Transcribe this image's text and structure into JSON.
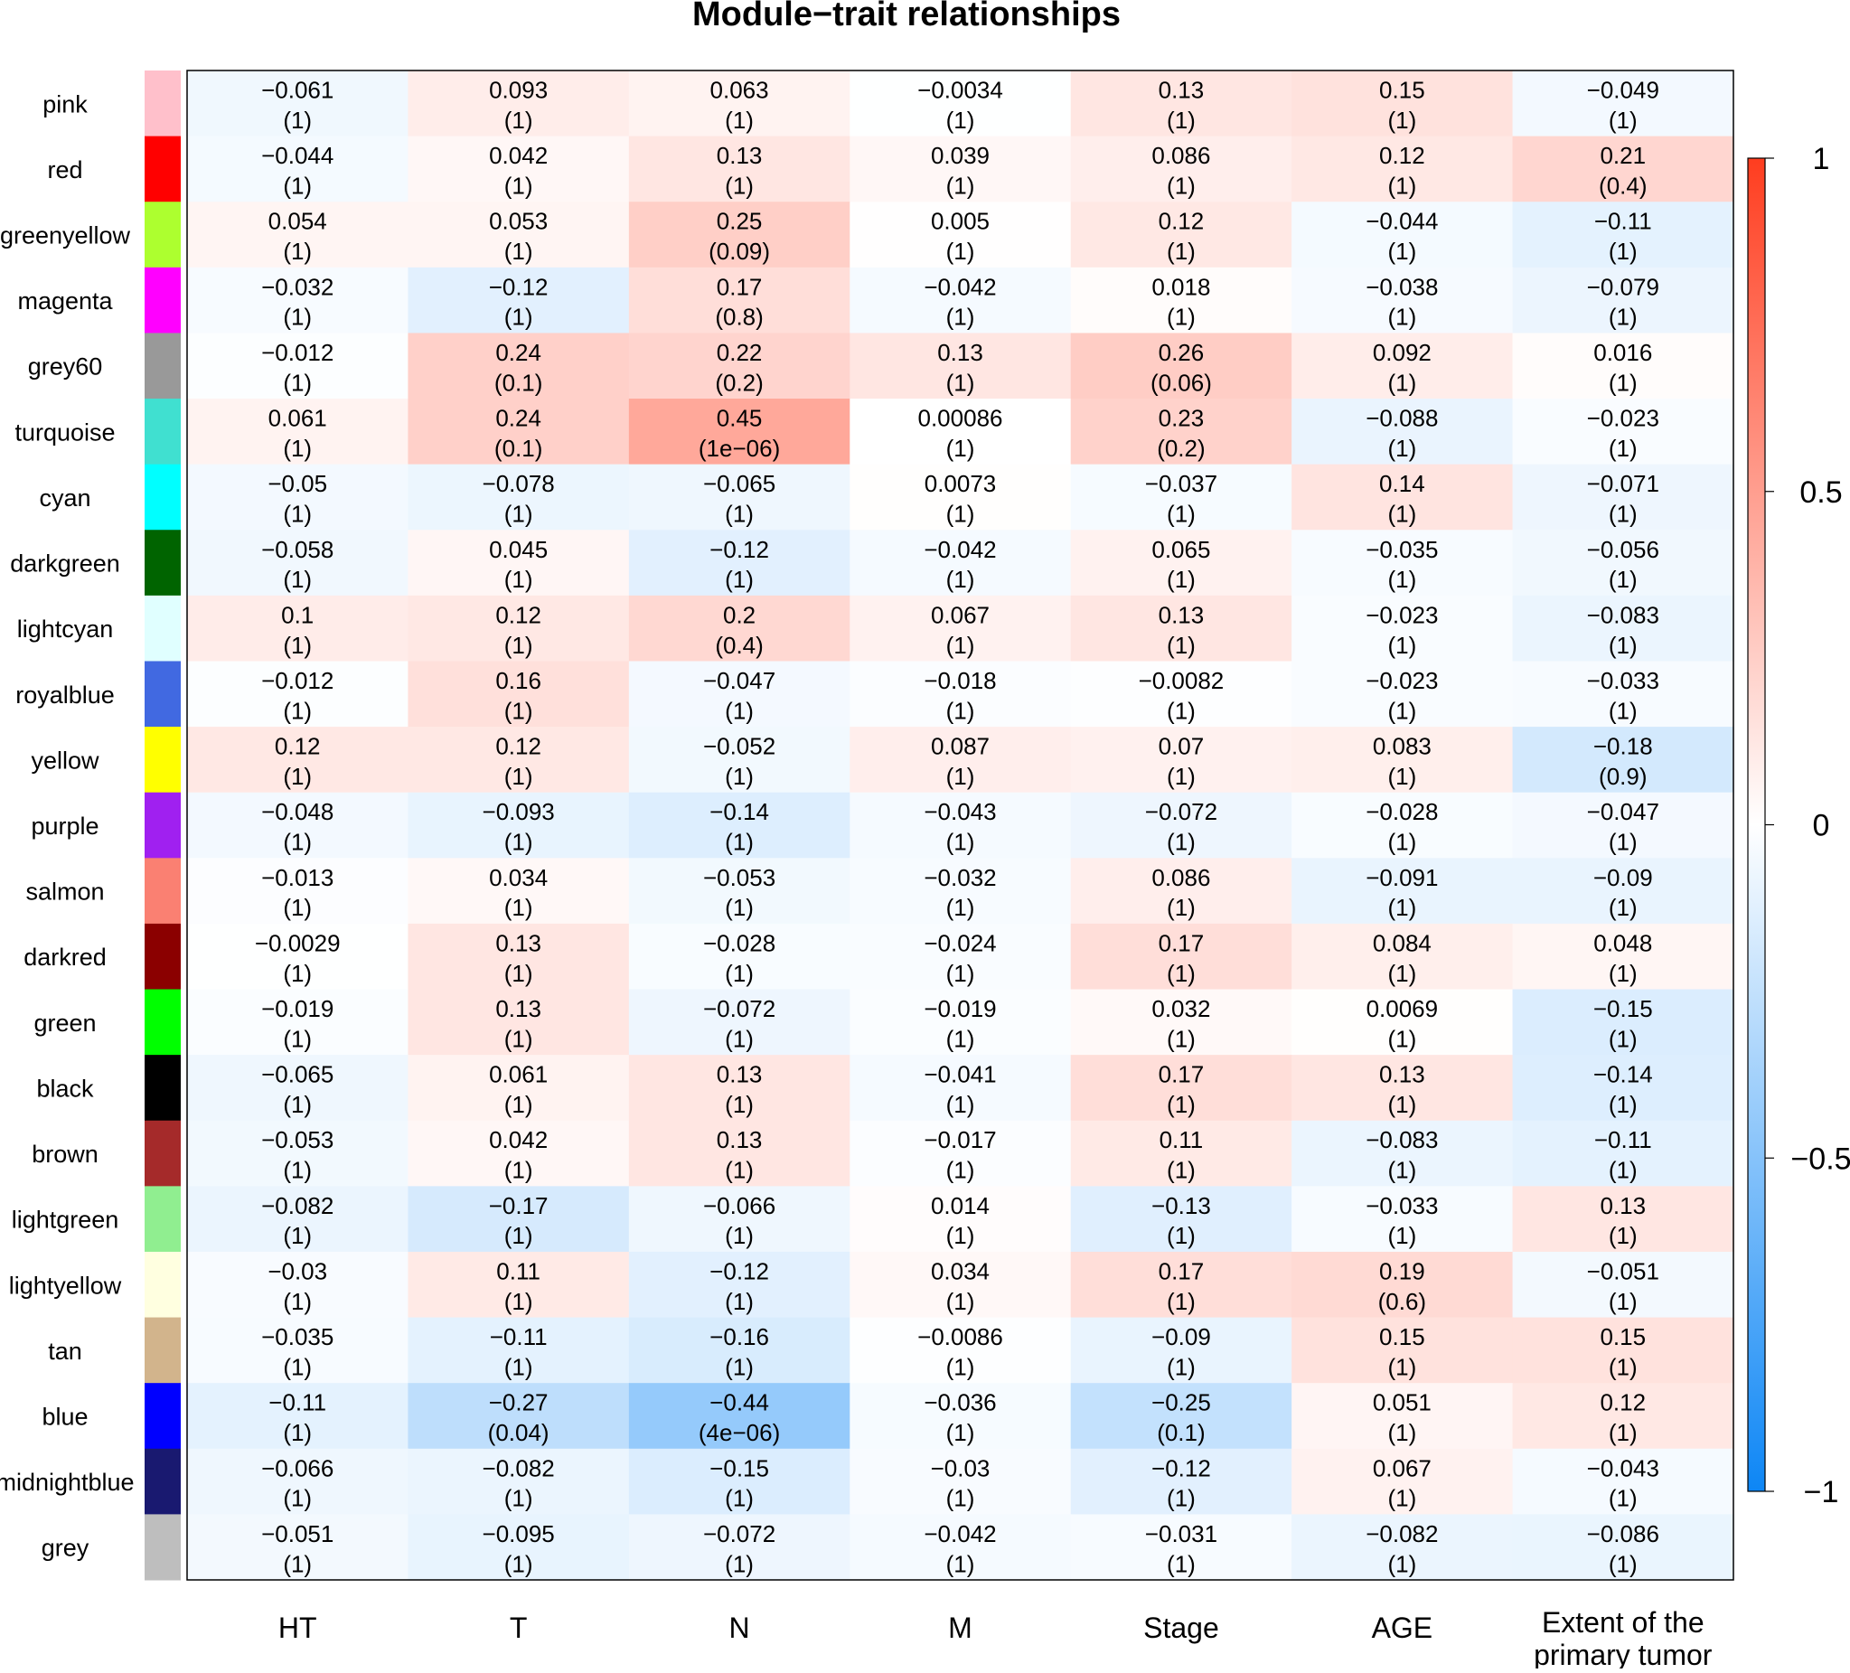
{
  "chart_data": {
    "type": "heatmap",
    "title": "Module−trait relationships",
    "rows": [
      "pink",
      "red",
      "greenyellow",
      "magenta",
      "grey60",
      "turquoise",
      "cyan",
      "darkgreen",
      "lightcyan",
      "royalblue",
      "yellow",
      "purple",
      "salmon",
      "darkred",
      "green",
      "black",
      "brown",
      "lightgreen",
      "lightyellow",
      "tan",
      "blue",
      "midnightblue",
      "grey"
    ],
    "row_colors": [
      "#FFC0CB",
      "#FF0000",
      "#ADFF2F",
      "#FF00FF",
      "#999999",
      "#40E0D0",
      "#00FFFF",
      "#006400",
      "#E0FFFF",
      "#4169E1",
      "#FFFF00",
      "#A020F0",
      "#FA8072",
      "#8B0000",
      "#00FF00",
      "#000000",
      "#A52A2A",
      "#90EE90",
      "#FFFFE0",
      "#D2B48C",
      "#0000FF",
      "#191970",
      "#BEBEBE"
    ],
    "columns": [
      "HT",
      "T",
      "N",
      "M",
      "Stage",
      "AGE",
      "Extent of the primary tumor"
    ],
    "values": [
      [
        -0.061,
        0.093,
        0.063,
        -0.0034,
        0.13,
        0.15,
        -0.049
      ],
      [
        -0.044,
        0.042,
        0.13,
        0.039,
        0.086,
        0.12,
        0.21
      ],
      [
        0.054,
        0.053,
        0.25,
        0.005,
        0.12,
        -0.044,
        -0.11
      ],
      [
        -0.032,
        -0.12,
        0.17,
        -0.042,
        0.018,
        -0.038,
        -0.079
      ],
      [
        -0.012,
        0.24,
        0.22,
        0.13,
        0.26,
        0.092,
        0.016
      ],
      [
        0.061,
        0.24,
        0.45,
        0.00086,
        0.23,
        -0.088,
        -0.023
      ],
      [
        -0.05,
        -0.078,
        -0.065,
        0.0073,
        -0.037,
        0.14,
        -0.071
      ],
      [
        -0.058,
        0.045,
        -0.12,
        -0.042,
        0.065,
        -0.035,
        -0.056
      ],
      [
        0.1,
        0.12,
        0.2,
        0.067,
        0.13,
        -0.023,
        -0.083
      ],
      [
        -0.012,
        0.16,
        -0.047,
        -0.018,
        -0.0082,
        -0.023,
        -0.033
      ],
      [
        0.12,
        0.12,
        -0.052,
        0.087,
        0.07,
        0.083,
        -0.18
      ],
      [
        -0.048,
        -0.093,
        -0.14,
        -0.043,
        -0.072,
        -0.028,
        -0.047
      ],
      [
        -0.013,
        0.034,
        -0.053,
        -0.032,
        0.086,
        -0.091,
        -0.09
      ],
      [
        -0.0029,
        0.13,
        -0.028,
        -0.024,
        0.17,
        0.084,
        0.048
      ],
      [
        -0.019,
        0.13,
        -0.072,
        -0.019,
        0.032,
        0.0069,
        -0.15
      ],
      [
        -0.065,
        0.061,
        0.13,
        -0.041,
        0.17,
        0.13,
        -0.14
      ],
      [
        -0.053,
        0.042,
        0.13,
        -0.017,
        0.11,
        -0.083,
        -0.11
      ],
      [
        -0.082,
        -0.17,
        -0.066,
        0.014,
        -0.13,
        -0.033,
        0.13
      ],
      [
        -0.03,
        0.11,
        -0.12,
        0.034,
        0.17,
        0.19,
        -0.051
      ],
      [
        -0.035,
        -0.11,
        -0.16,
        -0.0086,
        -0.09,
        0.15,
        0.15
      ],
      [
        -0.11,
        -0.27,
        -0.44,
        -0.036,
        -0.25,
        0.051,
        0.12
      ],
      [
        -0.066,
        -0.082,
        -0.15,
        -0.03,
        -0.12,
        0.067,
        -0.043
      ],
      [
        -0.051,
        -0.095,
        -0.072,
        -0.042,
        -0.031,
        -0.082,
        -0.086
      ]
    ],
    "value_labels": [
      [
        "−0.061",
        "0.093",
        "0.063",
        "−0.0034",
        "0.13",
        "0.15",
        "−0.049"
      ],
      [
        "−0.044",
        "0.042",
        "0.13",
        "0.039",
        "0.086",
        "0.12",
        "0.21"
      ],
      [
        "0.054",
        "0.053",
        "0.25",
        "0.005",
        "0.12",
        "−0.044",
        "−0.11"
      ],
      [
        "−0.032",
        "−0.12",
        "0.17",
        "−0.042",
        "0.018",
        "−0.038",
        "−0.079"
      ],
      [
        "−0.012",
        "0.24",
        "0.22",
        "0.13",
        "0.26",
        "0.092",
        "0.016"
      ],
      [
        "0.061",
        "0.24",
        "0.45",
        "0.00086",
        "0.23",
        "−0.088",
        "−0.023"
      ],
      [
        "−0.05",
        "−0.078",
        "−0.065",
        "0.0073",
        "−0.037",
        "0.14",
        "−0.071"
      ],
      [
        "−0.058",
        "0.045",
        "−0.12",
        "−0.042",
        "0.065",
        "−0.035",
        "−0.056"
      ],
      [
        "0.1",
        "0.12",
        "0.2",
        "0.067",
        "0.13",
        "−0.023",
        "−0.083"
      ],
      [
        "−0.012",
        "0.16",
        "−0.047",
        "−0.018",
        "−0.0082",
        "−0.023",
        "−0.033"
      ],
      [
        "0.12",
        "0.12",
        "−0.052",
        "0.087",
        "0.07",
        "0.083",
        "−0.18"
      ],
      [
        "−0.048",
        "−0.093",
        "−0.14",
        "−0.043",
        "−0.072",
        "−0.028",
        "−0.047"
      ],
      [
        "−0.013",
        "0.034",
        "−0.053",
        "−0.032",
        "0.086",
        "−0.091",
        "−0.09"
      ],
      [
        "−0.0029",
        "0.13",
        "−0.028",
        "−0.024",
        "0.17",
        "0.084",
        "0.048"
      ],
      [
        "−0.019",
        "0.13",
        "−0.072",
        "−0.019",
        "0.032",
        "0.0069",
        "−0.15"
      ],
      [
        "−0.065",
        "0.061",
        "0.13",
        "−0.041",
        "0.17",
        "0.13",
        "−0.14"
      ],
      [
        "−0.053",
        "0.042",
        "0.13",
        "−0.017",
        "0.11",
        "−0.083",
        "−0.11"
      ],
      [
        "−0.082",
        "−0.17",
        "−0.066",
        "0.014",
        "−0.13",
        "−0.033",
        "0.13"
      ],
      [
        "−0.03",
        "0.11",
        "−0.12",
        "0.034",
        "0.17",
        "0.19",
        "−0.051"
      ],
      [
        "−0.035",
        "−0.11",
        "−0.16",
        "−0.0086",
        "−0.09",
        "0.15",
        "0.15"
      ],
      [
        "−0.11",
        "−0.27",
        "−0.44",
        "−0.036",
        "−0.25",
        "0.051",
        "0.12"
      ],
      [
        "−0.066",
        "−0.082",
        "−0.15",
        "−0.03",
        "−0.12",
        "0.067",
        "−0.043"
      ],
      [
        "−0.051",
        "−0.095",
        "−0.072",
        "−0.042",
        "−0.031",
        "−0.082",
        "−0.086"
      ]
    ],
    "p_values": [
      [
        "(1)",
        "(1)",
        "(1)",
        "(1)",
        "(1)",
        "(1)",
        "(1)"
      ],
      [
        "(1)",
        "(1)",
        "(1)",
        "(1)",
        "(1)",
        "(1)",
        "(0.4)"
      ],
      [
        "(1)",
        "(1)",
        "(0.09)",
        "(1)",
        "(1)",
        "(1)",
        "(1)"
      ],
      [
        "(1)",
        "(1)",
        "(0.8)",
        "(1)",
        "(1)",
        "(1)",
        "(1)"
      ],
      [
        "(1)",
        "(0.1)",
        "(0.2)",
        "(1)",
        "(0.06)",
        "(1)",
        "(1)"
      ],
      [
        "(1)",
        "(0.1)",
        "(1e−06)",
        "(1)",
        "(0.2)",
        "(1)",
        "(1)"
      ],
      [
        "(1)",
        "(1)",
        "(1)",
        "(1)",
        "(1)",
        "(1)",
        "(1)"
      ],
      [
        "(1)",
        "(1)",
        "(1)",
        "(1)",
        "(1)",
        "(1)",
        "(1)"
      ],
      [
        "(1)",
        "(1)",
        "(0.4)",
        "(1)",
        "(1)",
        "(1)",
        "(1)"
      ],
      [
        "(1)",
        "(1)",
        "(1)",
        "(1)",
        "(1)",
        "(1)",
        "(1)"
      ],
      [
        "(1)",
        "(1)",
        "(1)",
        "(1)",
        "(1)",
        "(1)",
        "(0.9)"
      ],
      [
        "(1)",
        "(1)",
        "(1)",
        "(1)",
        "(1)",
        "(1)",
        "(1)"
      ],
      [
        "(1)",
        "(1)",
        "(1)",
        "(1)",
        "(1)",
        "(1)",
        "(1)"
      ],
      [
        "(1)",
        "(1)",
        "(1)",
        "(1)",
        "(1)",
        "(1)",
        "(1)"
      ],
      [
        "(1)",
        "(1)",
        "(1)",
        "(1)",
        "(1)",
        "(1)",
        "(1)"
      ],
      [
        "(1)",
        "(1)",
        "(1)",
        "(1)",
        "(1)",
        "(1)",
        "(1)"
      ],
      [
        "(1)",
        "(1)",
        "(1)",
        "(1)",
        "(1)",
        "(1)",
        "(1)"
      ],
      [
        "(1)",
        "(1)",
        "(1)",
        "(1)",
        "(1)",
        "(1)",
        "(1)"
      ],
      [
        "(1)",
        "(1)",
        "(1)",
        "(1)",
        "(1)",
        "(0.6)",
        "(1)"
      ],
      [
        "(1)",
        "(1)",
        "(1)",
        "(1)",
        "(1)",
        "(1)",
        "(1)"
      ],
      [
        "(1)",
        "(0.04)",
        "(4e−06)",
        "(1)",
        "(0.1)",
        "(1)",
        "(1)"
      ],
      [
        "(1)",
        "(1)",
        "(1)",
        "(1)",
        "(1)",
        "(1)",
        "(1)"
      ],
      [
        "(1)",
        "(1)",
        "(1)",
        "(1)",
        "(1)",
        "(1)",
        "(1)"
      ]
    ],
    "color_scale": {
      "min": -1,
      "max": 1,
      "low_color": "#0D86F5",
      "mid_color": "#FFFFFF",
      "high_color": "#FF3D1F",
      "ticks": [
        {
          "value": 1,
          "label": "1"
        },
        {
          "value": 0.5,
          "label": "0.5"
        },
        {
          "value": 0,
          "label": "0"
        },
        {
          "value": -0.5,
          "label": "−0.5"
        },
        {
          "value": -1,
          "label": "−1"
        }
      ]
    }
  }
}
